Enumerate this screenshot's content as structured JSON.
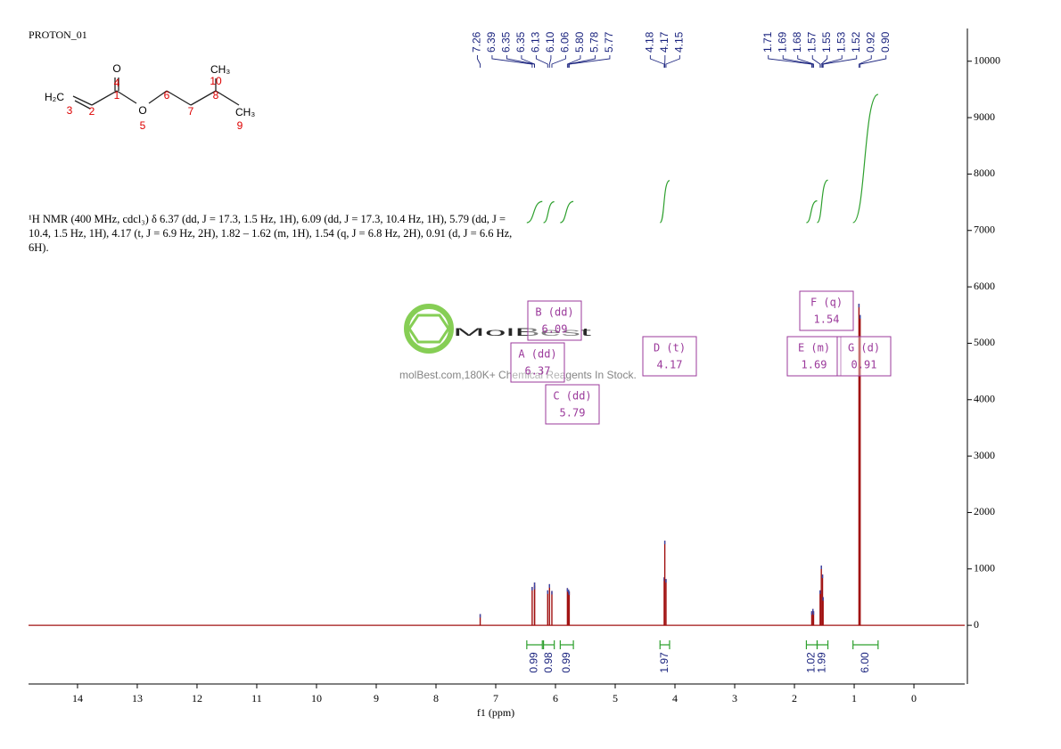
{
  "chart_data": {
    "type": "nmr",
    "title": "PROTON_01",
    "xlabel": "f1 (ppm)",
    "xlim": [
      14.82,
      -0.85
    ],
    "xticks": [
      14,
      13,
      12,
      11,
      10,
      9,
      8,
      7,
      6,
      5,
      4,
      3,
      2,
      1,
      0
    ],
    "ylim": [
      -1040,
      10580
    ],
    "yticks": [
      0,
      1000,
      2000,
      3000,
      4000,
      5000,
      6000,
      7000,
      8000,
      9000,
      10000
    ],
    "peak_color": "#a01010",
    "label_color": "#1a237e",
    "integral_color": "#2ea02e",
    "box_color": "#9b3a9b",
    "peaks": [
      {
        "ppm": 7.26,
        "label": "7.26",
        "intensity": 200
      },
      {
        "ppm": 6.39,
        "label": "6.39",
        "intensity": 680
      },
      {
        "ppm": 6.35,
        "label": "6.35",
        "intensity": 760
      },
      {
        "ppm": 6.35,
        "label": "6.35",
        "intensity": 700
      },
      {
        "ppm": 6.13,
        "label": "6.13",
        "intensity": 620
      },
      {
        "ppm": 6.1,
        "label": "6.10",
        "intensity": 730
      },
      {
        "ppm": 6.06,
        "label": "6.06",
        "intensity": 610
      },
      {
        "ppm": 5.8,
        "label": "5.80",
        "intensity": 660
      },
      {
        "ppm": 5.78,
        "label": "5.78",
        "intensity": 630
      },
      {
        "ppm": 5.77,
        "label": "5.77",
        "intensity": 600
      },
      {
        "ppm": 4.18,
        "label": "4.18",
        "intensity": 850
      },
      {
        "ppm": 4.17,
        "label": "4.17",
        "intensity": 1500
      },
      {
        "ppm": 4.15,
        "label": "4.15",
        "intensity": 820
      },
      {
        "ppm": 1.71,
        "label": "1.71",
        "intensity": 250
      },
      {
        "ppm": 1.69,
        "label": "1.69",
        "intensity": 290
      },
      {
        "ppm": 1.68,
        "label": "1.68",
        "intensity": 250
      },
      {
        "ppm": 1.57,
        "label": "1.57",
        "intensity": 620
      },
      {
        "ppm": 1.55,
        "label": "1.55",
        "intensity": 1060
      },
      {
        "ppm": 1.53,
        "label": "1.53",
        "intensity": 900
      },
      {
        "ppm": 1.52,
        "label": "1.52",
        "intensity": 500
      },
      {
        "ppm": 0.92,
        "label": "0.92",
        "intensity": 5700
      },
      {
        "ppm": 0.9,
        "label": "0.90",
        "intensity": 5500
      }
    ],
    "integrals": [
      {
        "from": 6.48,
        "to": 6.22,
        "value": 0.99,
        "label": "0.99"
      },
      {
        "from": 6.2,
        "to": 6.02,
        "value": 0.98,
        "label": "0.98"
      },
      {
        "from": 5.92,
        "to": 5.7,
        "value": 0.99,
        "label": "0.99"
      },
      {
        "from": 4.25,
        "to": 4.09,
        "value": 1.97,
        "label": "1.97"
      },
      {
        "from": 1.8,
        "to": 1.62,
        "value": 1.02,
        "label": "1.02"
      },
      {
        "from": 1.62,
        "to": 1.44,
        "value": 1.99,
        "label": "1.99"
      },
      {
        "from": 1.02,
        "to": 0.6,
        "value": 6,
        "label": "6.00"
      }
    ],
    "multiplets": [
      {
        "name": "B (dd)",
        "shift": 6.09
      },
      {
        "name": "A (dd)",
        "shift": 6.37
      },
      {
        "name": "C (dd)",
        "shift": 5.79
      },
      {
        "name": "D (t)",
        "shift": 4.17
      },
      {
        "name": "F (q)",
        "shift": 1.54
      },
      {
        "name": "E (m)",
        "shift": 1.69
      },
      {
        "name": "G (d)",
        "shift": 0.91
      }
    ]
  },
  "description": "¹H NMR (400 MHz, cdcl₃) δ 6.37 (dd, J = 17.3, 1.5 Hz, 1H), 6.09 (dd, J = 17.3, 10.4 Hz, 1H), 5.79 (dd, J = 10.4, 1.5 Hz, 1H), 4.17 (t, J = 6.9 Hz, 2H), 1.82 – 1.62 (m, 1H), 1.54 (q, J = 6.8 Hz, 2H), 0.91 (d, J = 6.6 Hz, 6H).",
  "molecule": {
    "atoms": [
      "O",
      "CH₃",
      "H₂C",
      "O",
      "CH₃"
    ],
    "numbers": [
      "4",
      "1",
      "10",
      "8",
      "3",
      "2",
      "6",
      "7",
      "5",
      "9"
    ]
  },
  "watermark": {
    "brand": "MolBest",
    "tagline": "molBest.com,180K+ Chemical Reagents In Stock."
  }
}
